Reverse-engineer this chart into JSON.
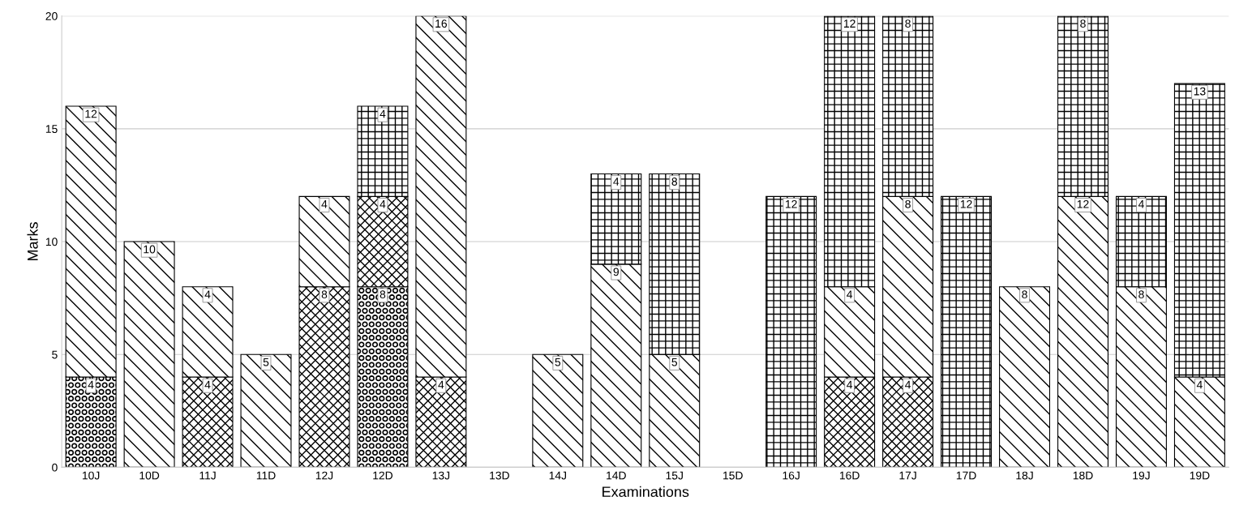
{
  "chart_data": {
    "type": "bar",
    "stacked": true,
    "data_labels": true,
    "grid": "y",
    "legend": false,
    "xlabel": "Examinations",
    "ylabel": "Marks",
    "categories": [
      "10J",
      "10D",
      "11J",
      "11D",
      "12J",
      "12D",
      "13J",
      "13D",
      "14J",
      "14D",
      "15J",
      "15D",
      "16J",
      "16D",
      "17J",
      "17D",
      "18J",
      "18D",
      "19J",
      "19D"
    ],
    "ylim": [
      0,
      20
    ],
    "yticks": [
      0,
      5,
      10,
      15,
      20
    ],
    "series": [
      {
        "color": "#000000",
        "values": [
          4,
          null,
          null,
          null,
          null,
          8,
          null,
          null,
          null,
          null,
          null,
          null,
          null,
          null,
          null,
          null,
          null,
          null,
          null,
          null
        ]
      },
      {
        "color": "#000000",
        "values": [
          null,
          null,
          4,
          null,
          8,
          4,
          4,
          null,
          null,
          null,
          null,
          null,
          null,
          4,
          4,
          null,
          null,
          null,
          null,
          null
        ]
      },
      {
        "color": "#000000",
        "values": [
          12,
          10,
          4,
          5,
          4,
          null,
          16,
          null,
          5,
          9,
          5,
          null,
          null,
          4,
          8,
          null,
          8,
          12,
          8,
          4
        ]
      },
      {
        "color": "#000000",
        "values": [
          null,
          null,
          null,
          null,
          null,
          4,
          null,
          null,
          null,
          4,
          8,
          null,
          12,
          12,
          8,
          12,
          null,
          8,
          4,
          13
        ]
      }
    ]
  }
}
